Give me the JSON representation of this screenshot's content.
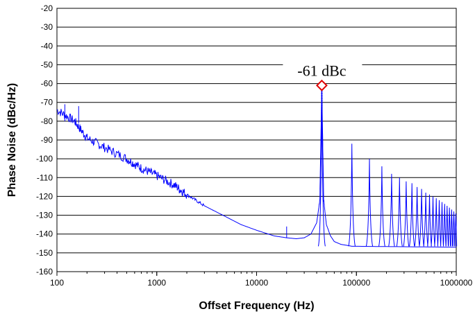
{
  "chart_data": {
    "type": "line",
    "title": "",
    "xlabel": "Offset Frequency (Hz)",
    "ylabel": "Phase Noise (dBc/Hz)",
    "xscale": "log",
    "xlim": [
      100,
      1000000
    ],
    "ylim": [
      -160,
      -20
    ],
    "x_ticks": [
      100,
      1000,
      10000,
      100000,
      1000000
    ],
    "x_tick_labels": [
      "100",
      "1000",
      "10000",
      "100000",
      "1000000"
    ],
    "y_ticks": [
      -20,
      -30,
      -40,
      -50,
      -60,
      -70,
      -80,
      -90,
      -100,
      -110,
      -120,
      -130,
      -140,
      -150,
      -160
    ],
    "y_tick_labels": [
      "-20",
      "-30",
      "-40",
      "-50",
      "-60",
      "-70",
      "-80",
      "-90",
      "-100",
      "-110",
      "-120",
      "-130",
      "-140",
      "-150",
      "-160"
    ],
    "grid": "horizontal",
    "line_color": "#0000ff",
    "series": [
      {
        "x": [
          100,
          150,
          200,
          300,
          500,
          700,
          1000,
          1500,
          2000,
          3000,
          5000,
          7000,
          10000,
          15000,
          20000,
          25000,
          30000,
          35000,
          40000,
          43000,
          45000,
          47000,
          50000,
          55000,
          60000,
          70000,
          80000,
          90000,
          1000000
        ],
        "y": [
          -74,
          -80,
          -89,
          -94,
          -100,
          -105,
          -109,
          -114,
          -119,
          -125,
          -131,
          -135,
          -138,
          -141,
          -142,
          -142.5,
          -142,
          -140,
          -134,
          -122,
          -61,
          -122,
          -135,
          -141,
          -144,
          -145.5,
          -146,
          -146.5,
          -147
        ]
      }
    ],
    "spurs": {
      "x": [
        45000,
        90000,
        135000,
        180000,
        225000,
        270000,
        315000,
        360000,
        405000,
        450000,
        495000,
        540000,
        585000,
        630000,
        675000,
        720000,
        765000,
        810000,
        855000,
        900000,
        945000,
        990000
      ],
      "y": [
        -61,
        -92,
        -100,
        -104,
        -108,
        -110,
        -112,
        -113,
        -115,
        -116,
        -118,
        -119,
        -120,
        -121,
        -122,
        -123,
        -124,
        -125,
        -126,
        -127,
        -128,
        -129
      ]
    },
    "small_spurs": {
      "x": [
        120,
        165,
        20000
      ],
      "y": [
        -71,
        -72,
        -136
      ]
    },
    "annotation": {
      "text": "-61 dBc",
      "x": 45000,
      "y": -61,
      "marker": "diamond",
      "marker_color": "#e00000"
    }
  }
}
